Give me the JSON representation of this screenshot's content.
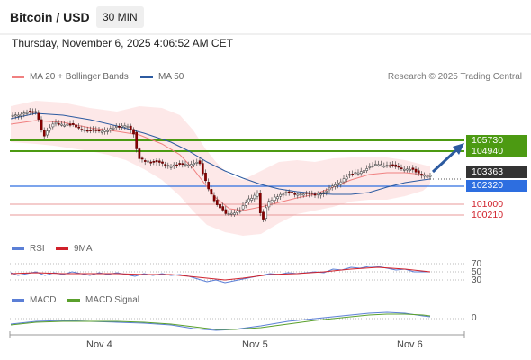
{
  "header": {
    "title": "Bitcoin / USD",
    "timeframe": "30 MIN",
    "datetime": "Thursday, November 6, 2025 4:06:52 AM CET"
  },
  "legend": {
    "ma20_label": "MA 20 + Bollinger Bands",
    "ma50_label": "MA 50",
    "credit": "Research © 2025 Trading Central"
  },
  "levels": {
    "r2": "105730",
    "r1": "104940",
    "current": "103363",
    "pivot": "102320",
    "s1": "101000",
    "s2": "100210"
  },
  "rsi": {
    "label": "RSI",
    "ma_label": "9MA",
    "scale": [
      "70",
      "50",
      "30"
    ]
  },
  "macd": {
    "label": "MACD",
    "signal_label": "MACD Signal",
    "zero": "0"
  },
  "xaxis": [
    "Nov 4",
    "Nov 5",
    "Nov 6"
  ],
  "colors": {
    "ma20": "#f08080",
    "ma50": "#2c5aa0",
    "green": "#4c9a12",
    "blue": "#2d6ee0",
    "red": "#d0202a",
    "candle": "#8b0000",
    "rsi": "#5b7fd6",
    "ma9": "#d0202a",
    "macd": "#5b7fd6",
    "signal": "#5aa02c"
  }
}
